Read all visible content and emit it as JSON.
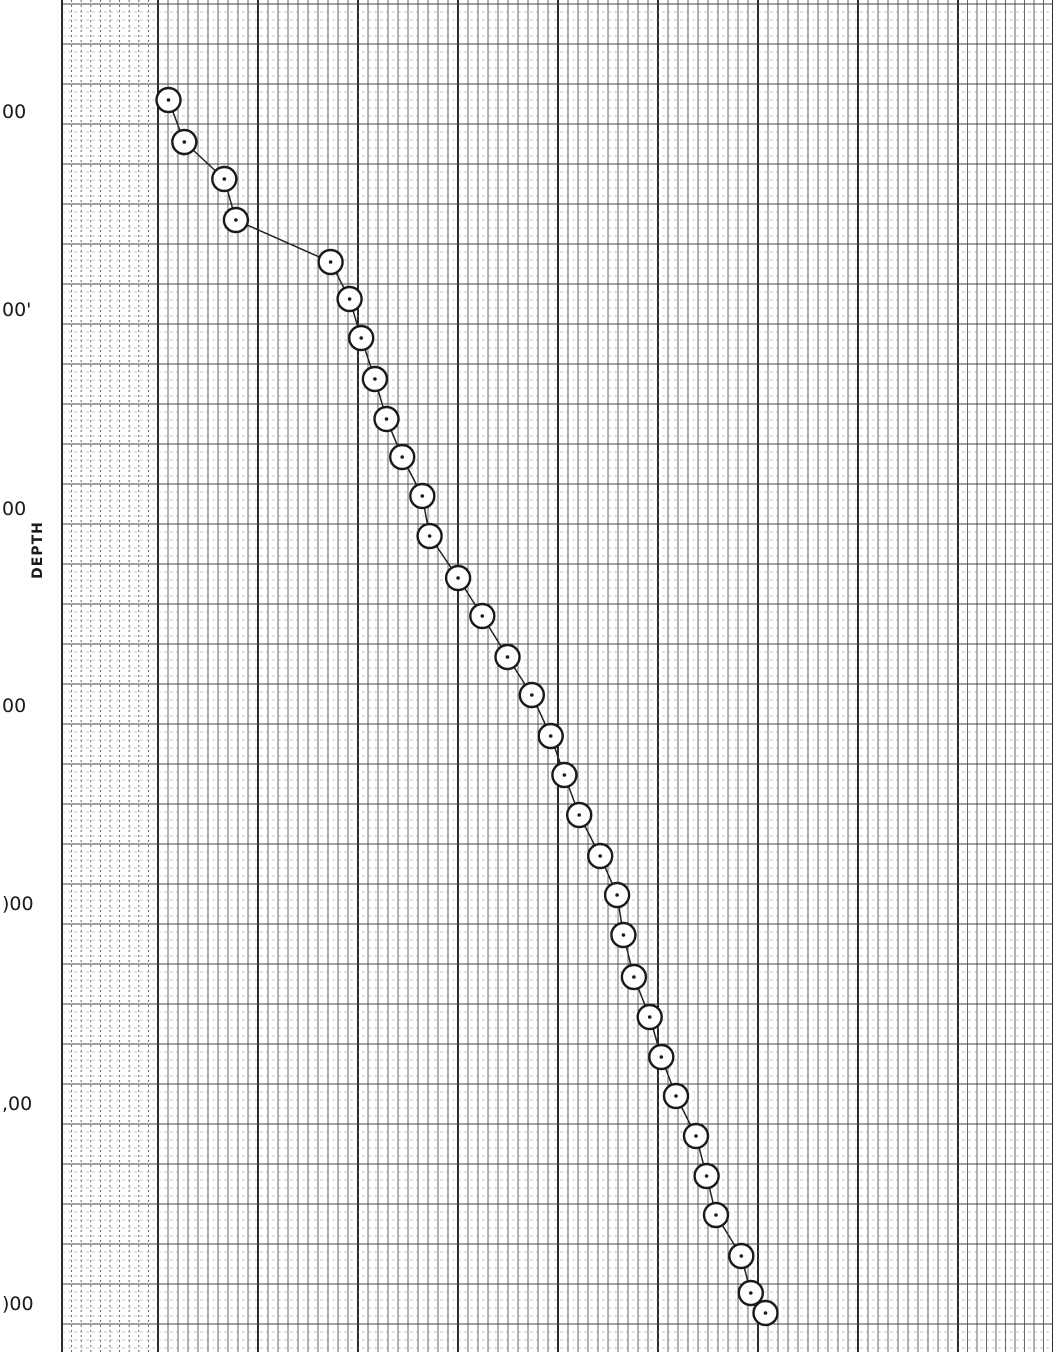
{
  "chart_data": {
    "type": "scatter",
    "title": "",
    "xlabel": "",
    "ylabel": "DEPTH",
    "y_tick_labels": [
      "00",
      "00'",
      "00",
      "00",
      ")00",
      ",00",
      ")00"
    ],
    "grid": true,
    "connected_by_line": true,
    "marker": "open-circle",
    "x_range": [
      0,
      100
    ],
    "y_range": [
      0,
      1352
    ],
    "points": [
      {
        "x": 16.0,
        "y": 100
      },
      {
        "x": 17.5,
        "y": 142
      },
      {
        "x": 21.3,
        "y": 179
      },
      {
        "x": 22.4,
        "y": 220
      },
      {
        "x": 31.4,
        "y": 262
      },
      {
        "x": 33.2,
        "y": 299
      },
      {
        "x": 34.3,
        "y": 338
      },
      {
        "x": 35.6,
        "y": 379
      },
      {
        "x": 36.7,
        "y": 419
      },
      {
        "x": 38.2,
        "y": 457
      },
      {
        "x": 40.1,
        "y": 496
      },
      {
        "x": 40.8,
        "y": 536
      },
      {
        "x": 43.5,
        "y": 578
      },
      {
        "x": 45.8,
        "y": 616
      },
      {
        "x": 48.2,
        "y": 657
      },
      {
        "x": 50.5,
        "y": 695
      },
      {
        "x": 52.3,
        "y": 736
      },
      {
        "x": 53.6,
        "y": 775
      },
      {
        "x": 55.0,
        "y": 815
      },
      {
        "x": 57.0,
        "y": 856
      },
      {
        "x": 58.6,
        "y": 895
      },
      {
        "x": 59.2,
        "y": 935
      },
      {
        "x": 60.2,
        "y": 977
      },
      {
        "x": 61.7,
        "y": 1017
      },
      {
        "x": 62.8,
        "y": 1057
      },
      {
        "x": 64.2,
        "y": 1096
      },
      {
        "x": 66.1,
        "y": 1136
      },
      {
        "x": 67.1,
        "y": 1176
      },
      {
        "x": 68.0,
        "y": 1215
      },
      {
        "x": 70.4,
        "y": 1256
      },
      {
        "x": 71.3,
        "y": 1293
      },
      {
        "x": 72.7,
        "y": 1313
      }
    ]
  }
}
